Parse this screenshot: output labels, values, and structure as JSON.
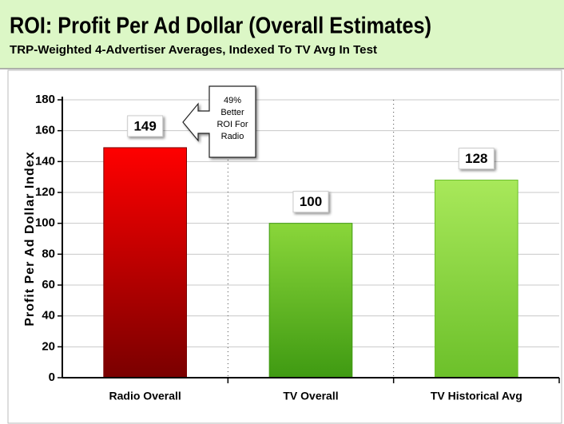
{
  "chart_data": {
    "type": "bar",
    "title": "ROI: Profit Per Ad Dollar (Overall Estimates)",
    "subtitle": "TRP-Weighted 4-Advertiser Averages, Indexed To TV Avg In Test",
    "y_label": "Profit Per Ad Dollar Index",
    "categories": [
      "Radio Overall",
      "TV Overall",
      "TV Historical Avg"
    ],
    "values": [
      149,
      100,
      128
    ],
    "colors": [
      [
        "#ff0000",
        "#7a0000"
      ],
      [
        "#8ad63a",
        "#3f9a12"
      ],
      [
        "#a8e85a",
        "#6cc02a"
      ]
    ],
    "annotation": [
      "49%",
      "Better",
      "ROI For",
      "Radio"
    ],
    "ylim": [
      0,
      180
    ],
    "yticks": [
      0,
      20,
      40,
      60,
      80,
      100,
      120,
      140,
      160,
      180
    ],
    "grid": true
  }
}
